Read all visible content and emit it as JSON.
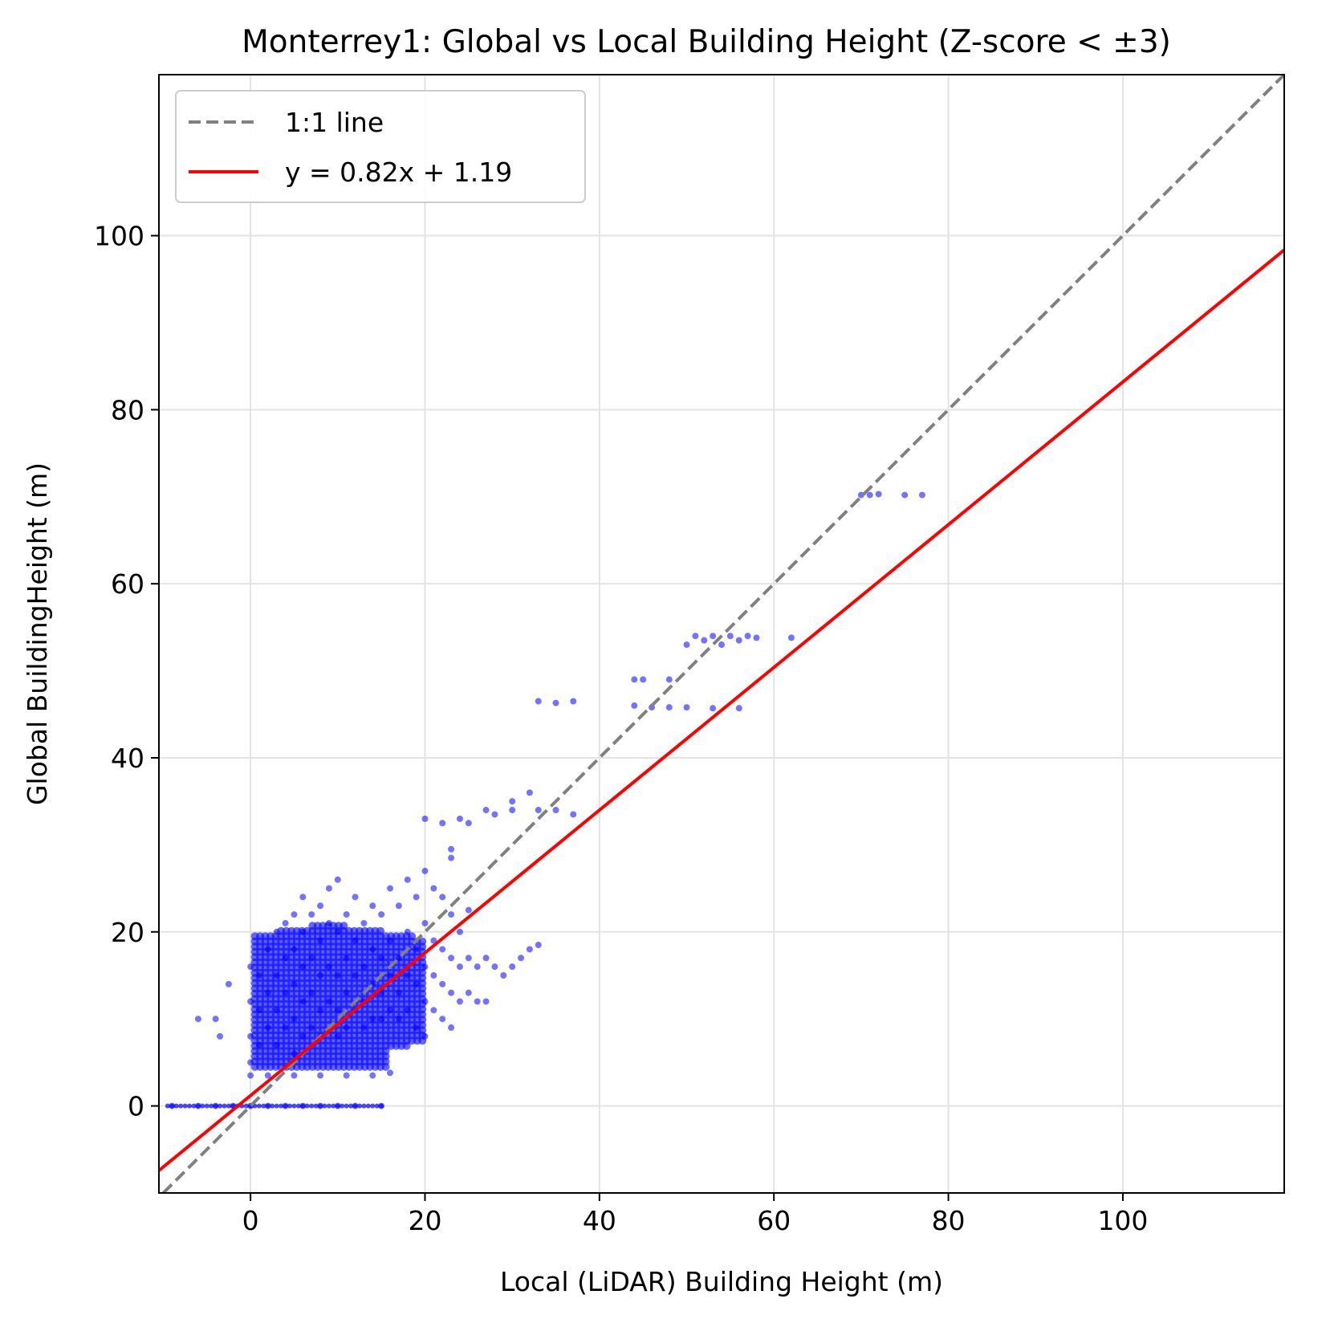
{
  "chart_data": {
    "type": "scatter",
    "title": "Monterrey1: Global vs Local Building Height (Z-score < ±3)",
    "xlabel": "Local (LiDAR) Building Height (m)",
    "ylabel": "Global BuildingHeight (m)",
    "xlim": [
      -10.5,
      118.5
    ],
    "ylim": [
      -10,
      118.5
    ],
    "xticks": [
      0,
      20,
      40,
      60,
      80,
      100
    ],
    "yticks": [
      0,
      20,
      40,
      60,
      80,
      100
    ],
    "xtick_labels": [
      "0",
      "20",
      "40",
      "60",
      "80",
      "100"
    ],
    "ytick_labels": [
      "0",
      "20",
      "40",
      "60",
      "80",
      "100"
    ],
    "grid": true,
    "legend_position": "top-left",
    "legend": [
      {
        "label": "1:1 line",
        "color": "#808080",
        "style": "dashed"
      },
      {
        "label": "y = 0.82x + 1.19",
        "color": "#ff0000",
        "style": "solid"
      }
    ],
    "lines": [
      {
        "name": "1:1 line",
        "slope": 1.0,
        "intercept": 0.0,
        "color": "#808080",
        "dashed": true
      },
      {
        "name": "y = 0.82x + 1.19",
        "slope": 0.82,
        "intercept": 1.19,
        "color": "#ff0000",
        "dashed": false
      }
    ],
    "scatter_color": "#0000ff",
    "points": [
      [
        -9,
        0
      ],
      [
        -6,
        0
      ],
      [
        -4,
        0
      ],
      [
        -2,
        0
      ],
      [
        0,
        0
      ],
      [
        2,
        0
      ],
      [
        4,
        0
      ],
      [
        6,
        0
      ],
      [
        8,
        0
      ],
      [
        10,
        0
      ],
      [
        12,
        0
      ],
      [
        15,
        0
      ],
      [
        0,
        16
      ],
      [
        0,
        12
      ],
      [
        0,
        8
      ],
      [
        0,
        5
      ],
      [
        0,
        3.5
      ],
      [
        2,
        3.5
      ],
      [
        5,
        3.5
      ],
      [
        8,
        3.5
      ],
      [
        11,
        3.5
      ],
      [
        14,
        3.5
      ],
      [
        16,
        3.8
      ],
      [
        -6,
        10
      ],
      [
        -4,
        10
      ],
      [
        -3.5,
        8
      ],
      [
        -2.5,
        14
      ],
      [
        1,
        15
      ],
      [
        1,
        11
      ],
      [
        1,
        7
      ],
      [
        2,
        18
      ],
      [
        2,
        13
      ],
      [
        2,
        9
      ],
      [
        3,
        20
      ],
      [
        3,
        15
      ],
      [
        3,
        11
      ],
      [
        3,
        7
      ],
      [
        4,
        21
      ],
      [
        4,
        17
      ],
      [
        4,
        13
      ],
      [
        4,
        9
      ],
      [
        5,
        22
      ],
      [
        5,
        18
      ],
      [
        5,
        14
      ],
      [
        5,
        10
      ],
      [
        5,
        6
      ],
      [
        6,
        24
      ],
      [
        6,
        20
      ],
      [
        6,
        16
      ],
      [
        6,
        12
      ],
      [
        6,
        8
      ],
      [
        7,
        22
      ],
      [
        7,
        17
      ],
      [
        7,
        13
      ],
      [
        7,
        9
      ],
      [
        8,
        23
      ],
      [
        8,
        19
      ],
      [
        8,
        15
      ],
      [
        8,
        11
      ],
      [
        8,
        8
      ],
      [
        9,
        25
      ],
      [
        9,
        21
      ],
      [
        9,
        16
      ],
      [
        9,
        12
      ],
      [
        10,
        26
      ],
      [
        10,
        20
      ],
      [
        10,
        15
      ],
      [
        10,
        11
      ],
      [
        10,
        8
      ],
      [
        11,
        22
      ],
      [
        11,
        17
      ],
      [
        11,
        13
      ],
      [
        11,
        9
      ],
      [
        12,
        24
      ],
      [
        12,
        19
      ],
      [
        12,
        15
      ],
      [
        12,
        11
      ],
      [
        13,
        21
      ],
      [
        13,
        16
      ],
      [
        13,
        12
      ],
      [
        13,
        9
      ],
      [
        14,
        23
      ],
      [
        14,
        18
      ],
      [
        14,
        14
      ],
      [
        14,
        10
      ],
      [
        15,
        22
      ],
      [
        15,
        17
      ],
      [
        15,
        13
      ],
      [
        15,
        10
      ],
      [
        16,
        25
      ],
      [
        16,
        19
      ],
      [
        16,
        15
      ],
      [
        16,
        11
      ],
      [
        17,
        23
      ],
      [
        17,
        17
      ],
      [
        17,
        13
      ],
      [
        17,
        10
      ],
      [
        18,
        26
      ],
      [
        18,
        20
      ],
      [
        18,
        15
      ],
      [
        18,
        11
      ],
      [
        19,
        24
      ],
      [
        19,
        18
      ],
      [
        19,
        14
      ],
      [
        19,
        9
      ],
      [
        20,
        27
      ],
      [
        20,
        21
      ],
      [
        20,
        16
      ],
      [
        20,
        12
      ],
      [
        20,
        8
      ],
      [
        21,
        25
      ],
      [
        21,
        19
      ],
      [
        21,
        15
      ],
      [
        21,
        11
      ],
      [
        22,
        24
      ],
      [
        22,
        18
      ],
      [
        22,
        14
      ],
      [
        22,
        10
      ],
      [
        23,
        22
      ],
      [
        23,
        17
      ],
      [
        23,
        13
      ],
      [
        23,
        9
      ],
      [
        24,
        20
      ],
      [
        24,
        16
      ],
      [
        24,
        12
      ],
      [
        25,
        22.5
      ],
      [
        25,
        17
      ],
      [
        25,
        13
      ],
      [
        26,
        16
      ],
      [
        26,
        12
      ],
      [
        27,
        17
      ],
      [
        27,
        12
      ],
      [
        28,
        16
      ],
      [
        29,
        15
      ],
      [
        30,
        16
      ],
      [
        31,
        17
      ],
      [
        32,
        18
      ],
      [
        33,
        18.5
      ],
      [
        20,
        33
      ],
      [
        22,
        32.5
      ],
      [
        24,
        33
      ],
      [
        25,
        32.5
      ],
      [
        23,
        29.5
      ],
      [
        23,
        28.5
      ],
      [
        27,
        34
      ],
      [
        28,
        33.5
      ],
      [
        30,
        35
      ],
      [
        30,
        34
      ],
      [
        32,
        36
      ],
      [
        33,
        34
      ],
      [
        35,
        34
      ],
      [
        37,
        33.5
      ],
      [
        33,
        46.5
      ],
      [
        35,
        46.3
      ],
      [
        37,
        46.5
      ],
      [
        44,
        49
      ],
      [
        45,
        49
      ],
      [
        48,
        49
      ],
      [
        44,
        46
      ],
      [
        46,
        45.8
      ],
      [
        48,
        45.8
      ],
      [
        50,
        45.8
      ],
      [
        53,
        45.7
      ],
      [
        56,
        45.7
      ],
      [
        50,
        53
      ],
      [
        51,
        54
      ],
      [
        52,
        53.5
      ],
      [
        53,
        54
      ],
      [
        54,
        53
      ],
      [
        55,
        54
      ],
      [
        56,
        53.5
      ],
      [
        57,
        54
      ],
      [
        58,
        53.8
      ],
      [
        62,
        53.8
      ],
      [
        70,
        70.2
      ],
      [
        71,
        70.2
      ],
      [
        72,
        70.3
      ],
      [
        75,
        70.2
      ],
      [
        77,
        70.2
      ]
    ]
  }
}
